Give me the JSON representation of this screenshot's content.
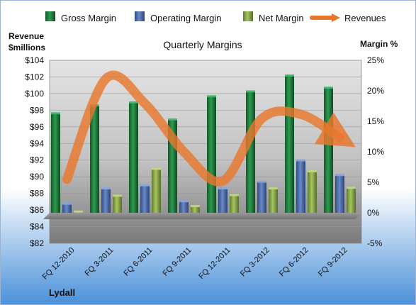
{
  "chart_data": {
    "type": "bar",
    "title": "Quarterly Margins",
    "company": "Lydall",
    "left_axis_label_line1": "Revenue",
    "left_axis_label_line2": "$millions",
    "right_axis_label": "Margin %",
    "categories": [
      "FQ 12-2010",
      "FQ 3-2011",
      "FQ 6-2011",
      "FQ 9-2011",
      "FQ 12-2011",
      "FQ 3-2012",
      "FQ 6-2012",
      "FQ 9-2012"
    ],
    "left_axis": {
      "min": 82,
      "max": 104,
      "step": 2,
      "ticks": [
        "$82",
        "$84",
        "$86",
        "$88",
        "$90",
        "$92",
        "$94",
        "$96",
        "$98",
        "$100",
        "$102",
        "$104"
      ]
    },
    "right_axis": {
      "min": -5,
      "max": 25,
      "step": 5,
      "ticks": [
        "-5%",
        "0%",
        "5%",
        "10%",
        "15%",
        "20%",
        "25%"
      ]
    },
    "series": [
      {
        "name": "Gross Margin",
        "axis": "right",
        "color": "#1e7a3c",
        "values": [
          16.3,
          17.6,
          18.1,
          15.3,
          19.1,
          19.9,
          22.5,
          20.5
        ]
      },
      {
        "name": "Operating Margin",
        "axis": "right",
        "color": "#4a6aa8",
        "values": [
          1.5,
          4.0,
          4.5,
          1.9,
          4.0,
          5.1,
          8.6,
          6.2
        ]
      },
      {
        "name": "Net Margin",
        "axis": "right",
        "color": "#8aaa45",
        "values": [
          0.2,
          2.8,
          7.2,
          1.1,
          2.9,
          4.0,
          6.8,
          4.1
        ]
      },
      {
        "name": "Revenues",
        "axis": "left",
        "type": "line",
        "color": "#e8772e",
        "values": [
          89.7,
          101.8,
          98.8,
          93.0,
          89.5,
          97.0,
          97.5,
          94.7
        ]
      }
    ],
    "legend_position": "top",
    "grid": true,
    "colors": {
      "plot_bg_top": "#e6e6e6",
      "plot_bg_bottom": "#7f7f7f",
      "page_bg_top": "#ffffff",
      "page_bg_bottom": "#4a90d9"
    }
  }
}
